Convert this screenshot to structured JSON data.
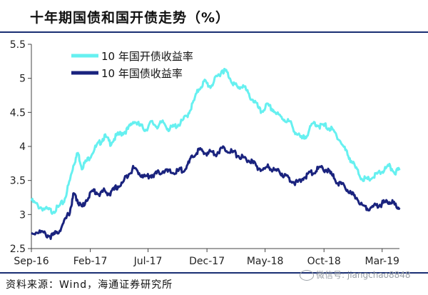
{
  "header": {
    "title": "十年期国债和国开债走势（%）"
  },
  "footer": {
    "source": "资料来源：Wind，海通证券研究所"
  },
  "watermark": {
    "text": "微信号: jiangchao8848",
    "icon": "wechat-icon"
  },
  "chart_data": {
    "type": "line",
    "title": "十年期国债和国开债走势（%）",
    "xlabel": "",
    "ylabel": "",
    "x_start": "2016-09-01",
    "x_end": "2019-04-15",
    "ylim": [
      2.5,
      5.5
    ],
    "y_ticks": [
      "2.5",
      "3",
      "3.5",
      "4",
      "4.5",
      "5",
      "5.5"
    ],
    "x_ticks": [
      {
        "label": "Sep-16",
        "date": "2016-09-01"
      },
      {
        "label": "Feb-17",
        "date": "2017-02-01"
      },
      {
        "label": "Jul-17",
        "date": "2017-07-01"
      },
      {
        "label": "Dec-17",
        "date": "2017-12-01"
      },
      {
        "label": "May-18",
        "date": "2018-05-01"
      },
      {
        "label": "Oct-18",
        "date": "2018-10-01"
      },
      {
        "label": "Mar-19",
        "date": "2019-03-01"
      }
    ],
    "grid": false,
    "legend_position": "top-left",
    "series": [
      {
        "name": "10 年国开债收益率",
        "color": "#66f0f0",
        "points": [
          [
            "2016-09-01",
            3.2
          ],
          [
            "2016-09-20",
            3.12
          ],
          [
            "2016-10-10",
            3.07
          ],
          [
            "2016-10-25",
            3.05
          ],
          [
            "2016-11-10",
            3.1
          ],
          [
            "2016-11-25",
            3.2
          ],
          [
            "2016-12-10",
            3.5
          ],
          [
            "2016-12-20",
            3.75
          ],
          [
            "2016-12-31",
            3.9
          ],
          [
            "2017-01-10",
            3.7
          ],
          [
            "2017-01-25",
            3.8
          ],
          [
            "2017-02-10",
            3.95
          ],
          [
            "2017-02-25",
            4.05
          ],
          [
            "2017-03-10",
            4.15
          ],
          [
            "2017-03-25",
            4.05
          ],
          [
            "2017-04-10",
            4.15
          ],
          [
            "2017-04-25",
            4.2
          ],
          [
            "2017-05-10",
            4.25
          ],
          [
            "2017-05-25",
            4.38
          ],
          [
            "2017-06-10",
            4.3
          ],
          [
            "2017-06-25",
            4.25
          ],
          [
            "2017-07-10",
            4.35
          ],
          [
            "2017-07-25",
            4.3
          ],
          [
            "2017-08-10",
            4.35
          ],
          [
            "2017-08-25",
            4.25
          ],
          [
            "2017-09-10",
            4.3
          ],
          [
            "2017-09-25",
            4.35
          ],
          [
            "2017-10-10",
            4.45
          ],
          [
            "2017-10-25",
            4.62
          ],
          [
            "2017-11-10",
            4.85
          ],
          [
            "2017-11-25",
            4.95
          ],
          [
            "2017-12-10",
            4.88
          ],
          [
            "2017-12-25",
            5.0
          ],
          [
            "2018-01-10",
            5.12
          ],
          [
            "2018-01-20",
            5.1
          ],
          [
            "2018-02-05",
            4.95
          ],
          [
            "2018-02-20",
            4.85
          ],
          [
            "2018-03-05",
            4.9
          ],
          [
            "2018-03-20",
            4.75
          ],
          [
            "2018-04-05",
            4.65
          ],
          [
            "2018-04-20",
            4.5
          ],
          [
            "2018-05-05",
            4.6
          ],
          [
            "2018-05-20",
            4.55
          ],
          [
            "2018-06-05",
            4.45
          ],
          [
            "2018-06-20",
            4.4
          ],
          [
            "2018-07-05",
            4.35
          ],
          [
            "2018-07-20",
            4.2
          ],
          [
            "2018-08-05",
            4.1
          ],
          [
            "2018-08-20",
            4.2
          ],
          [
            "2018-09-05",
            4.35
          ],
          [
            "2018-09-20",
            4.3
          ],
          [
            "2018-10-05",
            4.3
          ],
          [
            "2018-10-20",
            4.25
          ],
          [
            "2018-11-05",
            4.15
          ],
          [
            "2018-11-20",
            4.0
          ],
          [
            "2018-12-05",
            3.85
          ],
          [
            "2018-12-20",
            3.7
          ],
          [
            "2019-01-05",
            3.55
          ],
          [
            "2019-01-20",
            3.5
          ],
          [
            "2019-02-05",
            3.55
          ],
          [
            "2019-02-20",
            3.6
          ],
          [
            "2019-03-05",
            3.65
          ],
          [
            "2019-03-20",
            3.7
          ],
          [
            "2019-04-05",
            3.62
          ],
          [
            "2019-04-15",
            3.65
          ]
        ]
      },
      {
        "name": "10 年国债收益率",
        "color": "#1a237e",
        "points": [
          [
            "2016-09-01",
            2.73
          ],
          [
            "2016-09-20",
            2.75
          ],
          [
            "2016-10-10",
            2.7
          ],
          [
            "2016-10-25",
            2.68
          ],
          [
            "2016-11-10",
            2.75
          ],
          [
            "2016-11-25",
            2.88
          ],
          [
            "2016-12-10",
            3.05
          ],
          [
            "2016-12-20",
            3.3
          ],
          [
            "2016-12-31",
            3.2
          ],
          [
            "2017-01-10",
            3.1
          ],
          [
            "2017-01-25",
            3.25
          ],
          [
            "2017-02-10",
            3.35
          ],
          [
            "2017-02-25",
            3.3
          ],
          [
            "2017-03-10",
            3.35
          ],
          [
            "2017-03-25",
            3.3
          ],
          [
            "2017-04-10",
            3.4
          ],
          [
            "2017-04-25",
            3.45
          ],
          [
            "2017-05-10",
            3.6
          ],
          [
            "2017-05-25",
            3.68
          ],
          [
            "2017-06-10",
            3.6
          ],
          [
            "2017-06-25",
            3.55
          ],
          [
            "2017-07-10",
            3.58
          ],
          [
            "2017-07-25",
            3.6
          ],
          [
            "2017-08-10",
            3.65
          ],
          [
            "2017-08-25",
            3.62
          ],
          [
            "2017-09-10",
            3.62
          ],
          [
            "2017-09-25",
            3.65
          ],
          [
            "2017-10-10",
            3.7
          ],
          [
            "2017-10-25",
            3.85
          ],
          [
            "2017-11-10",
            3.95
          ],
          [
            "2017-11-25",
            3.9
          ],
          [
            "2017-12-10",
            3.92
          ],
          [
            "2017-12-25",
            3.9
          ],
          [
            "2018-01-10",
            3.97
          ],
          [
            "2018-01-25",
            3.95
          ],
          [
            "2018-02-10",
            3.9
          ],
          [
            "2018-02-25",
            3.85
          ],
          [
            "2018-03-10",
            3.82
          ],
          [
            "2018-03-25",
            3.78
          ],
          [
            "2018-04-10",
            3.7
          ],
          [
            "2018-04-25",
            3.65
          ],
          [
            "2018-05-10",
            3.7
          ],
          [
            "2018-05-25",
            3.65
          ],
          [
            "2018-06-10",
            3.62
          ],
          [
            "2018-06-25",
            3.55
          ],
          [
            "2018-07-10",
            3.5
          ],
          [
            "2018-07-25",
            3.45
          ],
          [
            "2018-08-10",
            3.55
          ],
          [
            "2018-08-25",
            3.6
          ],
          [
            "2018-09-10",
            3.65
          ],
          [
            "2018-09-25",
            3.68
          ],
          [
            "2018-10-10",
            3.65
          ],
          [
            "2018-10-25",
            3.55
          ],
          [
            "2018-11-10",
            3.45
          ],
          [
            "2018-11-25",
            3.4
          ],
          [
            "2018-12-10",
            3.3
          ],
          [
            "2018-12-25",
            3.25
          ],
          [
            "2019-01-10",
            3.12
          ],
          [
            "2019-01-25",
            3.1
          ],
          [
            "2019-02-10",
            3.12
          ],
          [
            "2019-02-25",
            3.15
          ],
          [
            "2019-03-10",
            3.18
          ],
          [
            "2019-03-25",
            3.2
          ],
          [
            "2019-04-05",
            3.12
          ],
          [
            "2019-04-15",
            3.1
          ]
        ]
      }
    ]
  }
}
